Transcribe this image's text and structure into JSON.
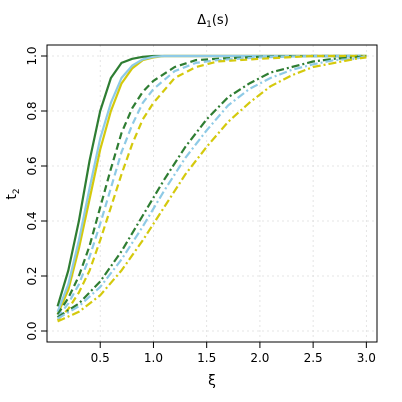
{
  "chart_data": {
    "type": "line",
    "title_main": "Δ",
    "title_sub": "1",
    "title_rest": "(s)",
    "xlabel": "ξ",
    "ylabel_main": "t",
    "ylabel_sub": "2",
    "xlim": [
      0.0,
      3.1
    ],
    "ylim": [
      -0.04,
      1.04
    ],
    "x_ticks": [
      "0.5",
      "1.0",
      "1.5",
      "2.0",
      "2.5",
      "3.0"
    ],
    "x_tick_values": [
      0.5,
      1.0,
      1.5,
      2.0,
      2.5,
      3.0
    ],
    "y_ticks": [
      "0.0",
      "0.2",
      "0.4",
      "0.6",
      "0.8",
      "1.0"
    ],
    "y_tick_values": [
      0.0,
      0.2,
      0.4,
      0.6,
      0.8,
      1.0
    ],
    "grid": true,
    "legend": "none",
    "series": [
      {
        "color": "#2e7d32",
        "dash": "solid",
        "x": [
          0.1,
          0.2,
          0.3,
          0.4,
          0.5,
          0.6,
          0.7,
          0.8,
          0.9,
          1.0,
          1.1,
          1.2,
          1.5,
          2.0,
          2.5,
          3.0
        ],
        "y": [
          0.09,
          0.22,
          0.4,
          0.62,
          0.8,
          0.92,
          0.975,
          0.99,
          0.997,
          1.0,
          1.0,
          1.0,
          1.0,
          1.0,
          1.0,
          1.0
        ]
      },
      {
        "color": "#d4c90c",
        "dash": "solid",
        "x": [
          0.1,
          0.2,
          0.3,
          0.4,
          0.5,
          0.6,
          0.7,
          0.8,
          0.9,
          1.0,
          1.1,
          1.2,
          1.5,
          2.0,
          2.5,
          3.0
        ],
        "y": [
          0.06,
          0.15,
          0.3,
          0.48,
          0.66,
          0.8,
          0.9,
          0.955,
          0.985,
          0.995,
          1.0,
          1.0,
          1.0,
          1.0,
          1.0,
          1.0
        ]
      },
      {
        "color": "#8ecae6",
        "dash": "solid",
        "x": [
          0.1,
          0.2,
          0.3,
          0.4,
          0.5,
          0.6,
          0.7,
          0.8,
          0.9,
          1.0,
          1.1,
          1.2,
          1.5,
          2.0,
          2.5,
          3.0
        ],
        "y": [
          0.07,
          0.17,
          0.33,
          0.52,
          0.7,
          0.83,
          0.92,
          0.965,
          0.988,
          0.997,
          1.0,
          1.0,
          1.0,
          1.0,
          1.0,
          1.0
        ]
      },
      {
        "color": "#2e7d32",
        "dash": "dashed",
        "x": [
          0.1,
          0.2,
          0.3,
          0.4,
          0.5,
          0.6,
          0.7,
          0.8,
          0.9,
          1.0,
          1.2,
          1.4,
          1.6,
          2.0,
          2.5,
          3.0
        ],
        "y": [
          0.06,
          0.12,
          0.2,
          0.31,
          0.45,
          0.59,
          0.72,
          0.81,
          0.87,
          0.91,
          0.96,
          0.985,
          0.99,
          0.997,
          1.0,
          1.0
        ]
      },
      {
        "color": "#8ecae6",
        "dash": "dashed",
        "x": [
          0.1,
          0.2,
          0.3,
          0.4,
          0.5,
          0.6,
          0.7,
          0.8,
          0.9,
          1.0,
          1.2,
          1.4,
          1.6,
          2.0,
          2.5,
          3.0
        ],
        "y": [
          0.05,
          0.1,
          0.17,
          0.27,
          0.39,
          0.52,
          0.65,
          0.75,
          0.83,
          0.88,
          0.945,
          0.975,
          0.985,
          0.995,
          1.0,
          1.0
        ]
      },
      {
        "color": "#d4c90c",
        "dash": "dashed",
        "x": [
          0.1,
          0.2,
          0.3,
          0.4,
          0.5,
          0.6,
          0.7,
          0.8,
          0.9,
          1.0,
          1.2,
          1.4,
          1.6,
          2.0,
          2.5,
          3.0
        ],
        "y": [
          0.04,
          0.08,
          0.14,
          0.22,
          0.33,
          0.45,
          0.57,
          0.68,
          0.77,
          0.83,
          0.92,
          0.96,
          0.98,
          0.99,
          1.0,
          1.0
        ]
      },
      {
        "color": "#2e7d32",
        "dash": "dashdot",
        "x": [
          0.1,
          0.3,
          0.5,
          0.7,
          0.9,
          1.1,
          1.3,
          1.5,
          1.7,
          1.9,
          2.1,
          2.3,
          2.5,
          2.7,
          2.9,
          3.0
        ],
        "y": [
          0.05,
          0.1,
          0.18,
          0.29,
          0.42,
          0.55,
          0.67,
          0.77,
          0.85,
          0.9,
          0.94,
          0.96,
          0.98,
          0.99,
          0.995,
          1.0
        ]
      },
      {
        "color": "#8ecae6",
        "dash": "dashdot",
        "x": [
          0.1,
          0.3,
          0.5,
          0.7,
          0.9,
          1.1,
          1.3,
          1.5,
          1.7,
          1.9,
          2.1,
          2.3,
          2.5,
          2.7,
          2.9,
          3.0
        ],
        "y": [
          0.045,
          0.09,
          0.16,
          0.26,
          0.38,
          0.51,
          0.63,
          0.73,
          0.82,
          0.88,
          0.92,
          0.95,
          0.97,
          0.985,
          0.99,
          1.0
        ]
      },
      {
        "color": "#d4c90c",
        "dash": "dashdot",
        "x": [
          0.1,
          0.3,
          0.5,
          0.7,
          0.9,
          1.1,
          1.3,
          1.5,
          1.7,
          1.9,
          2.1,
          2.3,
          2.5,
          2.7,
          2.9,
          3.0
        ],
        "y": [
          0.035,
          0.07,
          0.13,
          0.22,
          0.33,
          0.45,
          0.57,
          0.67,
          0.76,
          0.83,
          0.89,
          0.93,
          0.96,
          0.975,
          0.99,
          0.995
        ]
      }
    ]
  }
}
